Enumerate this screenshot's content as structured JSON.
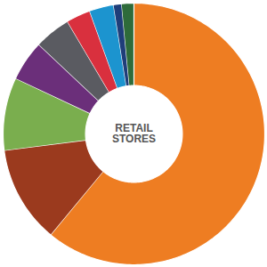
{
  "chart_data": {
    "type": "pie",
    "title": "RETAIL STORES",
    "values": [
      61,
      12,
      9,
      5,
      4.5,
      3,
      3,
      1,
      1.5
    ],
    "colors": [
      "#ee7d22",
      "#9b3a1e",
      "#7aae4e",
      "#6b2f7a",
      "#5a5b61",
      "#d9303e",
      "#1c94cf",
      "#1f3e7a",
      "#2e6b3a"
    ],
    "data_labels": false
  }
}
